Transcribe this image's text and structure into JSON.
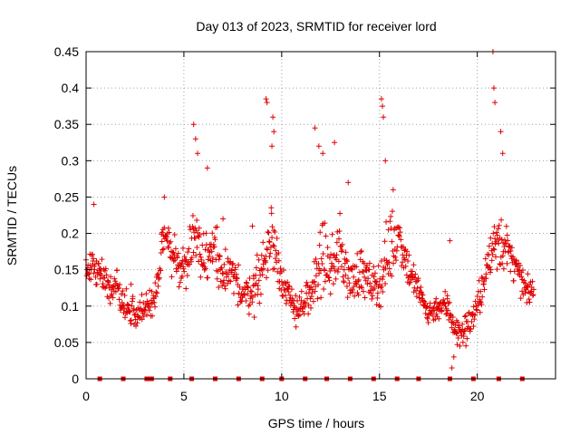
{
  "chart_data": {
    "type": "scatter",
    "title": "Day 013 of 2023, SRMTID for receiver lord",
    "xlabel": "GPS time / hours",
    "ylabel": "SRMTID / TECUs",
    "xlim": [
      0,
      24
    ],
    "ylim": [
      0,
      0.45
    ],
    "xticks": [
      0,
      5,
      10,
      15,
      20
    ],
    "xtick_labels": [
      "0",
      "5",
      "10",
      "15",
      "20"
    ],
    "yticks": [
      0,
      0.05,
      0.1,
      0.15,
      0.2,
      0.25,
      0.3,
      0.35,
      0.4,
      0.45
    ],
    "ytick_labels": [
      "0",
      "0.05",
      "0.1",
      "0.15",
      "0.2",
      "0.25",
      "0.3",
      "0.35",
      "0.4",
      "0.45"
    ],
    "grid": true,
    "marker": "plus",
    "color": "#e00000",
    "series_envelope": {
      "description": "estimated median level and spread of SRMTID vs time",
      "x": [
        0.0,
        0.5,
        1.0,
        1.5,
        2.0,
        2.5,
        3.0,
        3.5,
        4.0,
        4.5,
        5.0,
        5.5,
        6.0,
        6.5,
        7.0,
        7.5,
        8.0,
        8.5,
        9.0,
        9.5,
        10.0,
        10.5,
        11.0,
        11.5,
        12.0,
        12.5,
        13.0,
        13.5,
        14.0,
        14.5,
        15.0,
        15.5,
        16.0,
        16.5,
        17.0,
        17.5,
        18.0,
        18.5,
        19.0,
        19.5,
        20.0,
        20.5,
        21.0,
        21.5,
        22.0,
        22.5,
        23.0
      ],
      "median": [
        0.15,
        0.16,
        0.13,
        0.13,
        0.1,
        0.09,
        0.1,
        0.1,
        0.2,
        0.17,
        0.15,
        0.2,
        0.17,
        0.18,
        0.15,
        0.14,
        0.12,
        0.12,
        0.15,
        0.2,
        0.14,
        0.1,
        0.1,
        0.11,
        0.17,
        0.15,
        0.18,
        0.13,
        0.15,
        0.13,
        0.13,
        0.18,
        0.2,
        0.15,
        0.12,
        0.09,
        0.1,
        0.1,
        0.06,
        0.07,
        0.1,
        0.15,
        0.2,
        0.18,
        0.15,
        0.12,
        0.12
      ],
      "spread": [
        0.05,
        0.05,
        0.04,
        0.04,
        0.04,
        0.04,
        0.04,
        0.04,
        0.05,
        0.05,
        0.05,
        0.08,
        0.06,
        0.06,
        0.05,
        0.05,
        0.05,
        0.05,
        0.07,
        0.1,
        0.05,
        0.04,
        0.04,
        0.05,
        0.09,
        0.06,
        0.08,
        0.05,
        0.06,
        0.05,
        0.05,
        0.1,
        0.06,
        0.05,
        0.04,
        0.03,
        0.03,
        0.04,
        0.04,
        0.04,
        0.04,
        0.05,
        0.1,
        0.05,
        0.04,
        0.03,
        0.03
      ]
    },
    "spikes": [
      [
        0.4,
        0.24
      ],
      [
        2.3,
        0.13
      ],
      [
        4.0,
        0.25
      ],
      [
        5.5,
        0.35
      ],
      [
        5.6,
        0.33
      ],
      [
        5.7,
        0.31
      ],
      [
        6.2,
        0.29
      ],
      [
        7.0,
        0.22
      ],
      [
        8.5,
        0.21
      ],
      [
        9.2,
        0.385
      ],
      [
        9.25,
        0.38
      ],
      [
        9.5,
        0.32
      ],
      [
        9.55,
        0.36
      ],
      [
        9.6,
        0.34
      ],
      [
        11.7,
        0.345
      ],
      [
        11.9,
        0.32
      ],
      [
        12.1,
        0.31
      ],
      [
        12.7,
        0.325
      ],
      [
        13.4,
        0.27
      ],
      [
        15.1,
        0.385
      ],
      [
        15.15,
        0.375
      ],
      [
        15.2,
        0.36
      ],
      [
        15.3,
        0.3
      ],
      [
        15.7,
        0.26
      ],
      [
        20.8,
        0.45
      ],
      [
        20.85,
        0.4
      ],
      [
        20.9,
        0.38
      ],
      [
        21.2,
        0.34
      ],
      [
        21.3,
        0.31
      ],
      [
        18.6,
        0.19
      ],
      [
        18.7,
        0.015
      ],
      [
        18.8,
        0.03
      ]
    ],
    "zero_markers_x": [
      0.7,
      1.9,
      3.1,
      3.2,
      3.35,
      4.3,
      5.4,
      6.6,
      7.8,
      9.0,
      10.0,
      11.2,
      12.3,
      13.5,
      14.7,
      15.9,
      17.0,
      18.6,
      19.8,
      21.1,
      22.3
    ]
  }
}
